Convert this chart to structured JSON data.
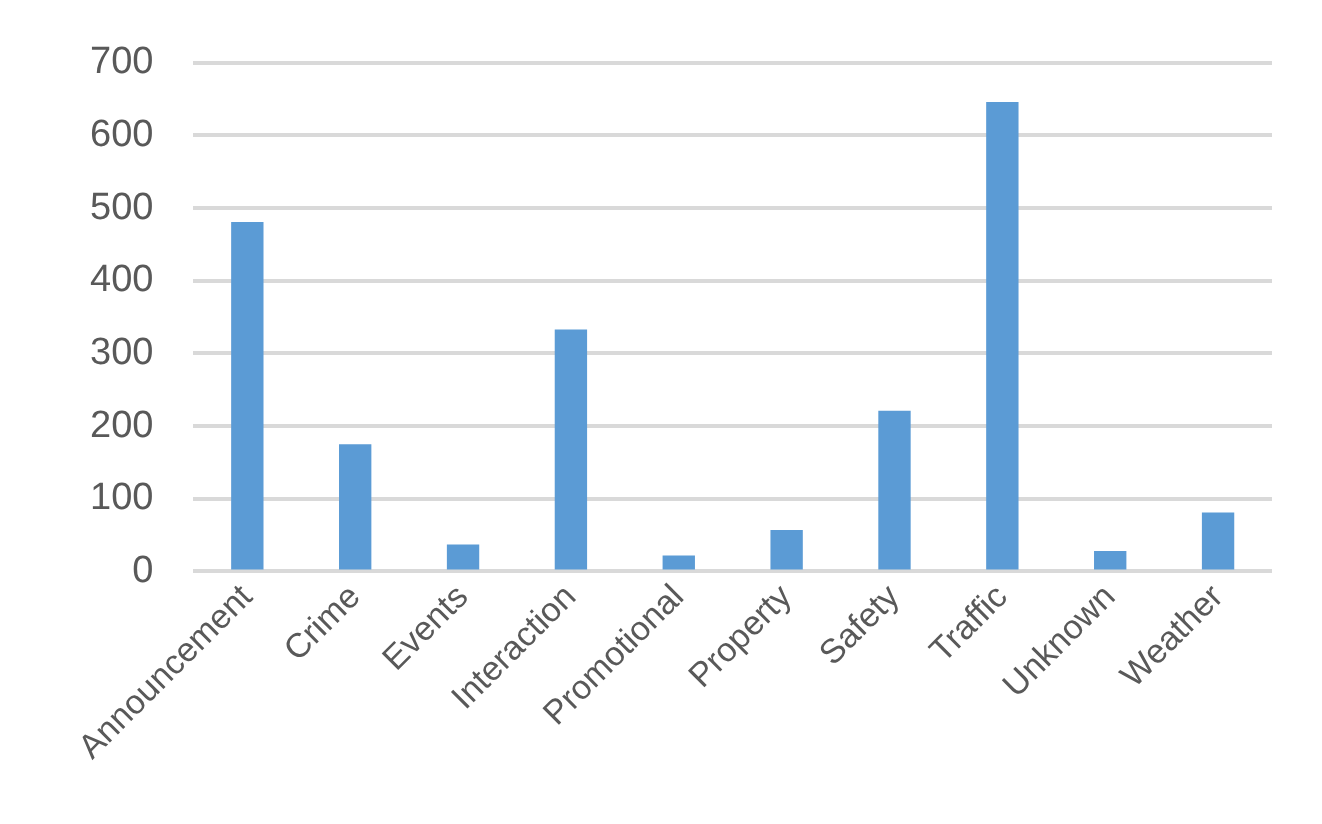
{
  "chart_data": {
    "type": "bar",
    "categories": [
      "Announcement",
      "Crime",
      "Events",
      "Interaction",
      "Promotional",
      "Property",
      "Safety",
      "Traffic",
      "Unknown",
      "Weather"
    ],
    "values": [
      481,
      175,
      37,
      333,
      22,
      57,
      221,
      646,
      28,
      81
    ],
    "color": "#5b9bd5",
    "ylim": [
      0,
      700
    ],
    "yticks": [
      0,
      100,
      200,
      300,
      400,
      500,
      600,
      700
    ],
    "grid": "y"
  }
}
